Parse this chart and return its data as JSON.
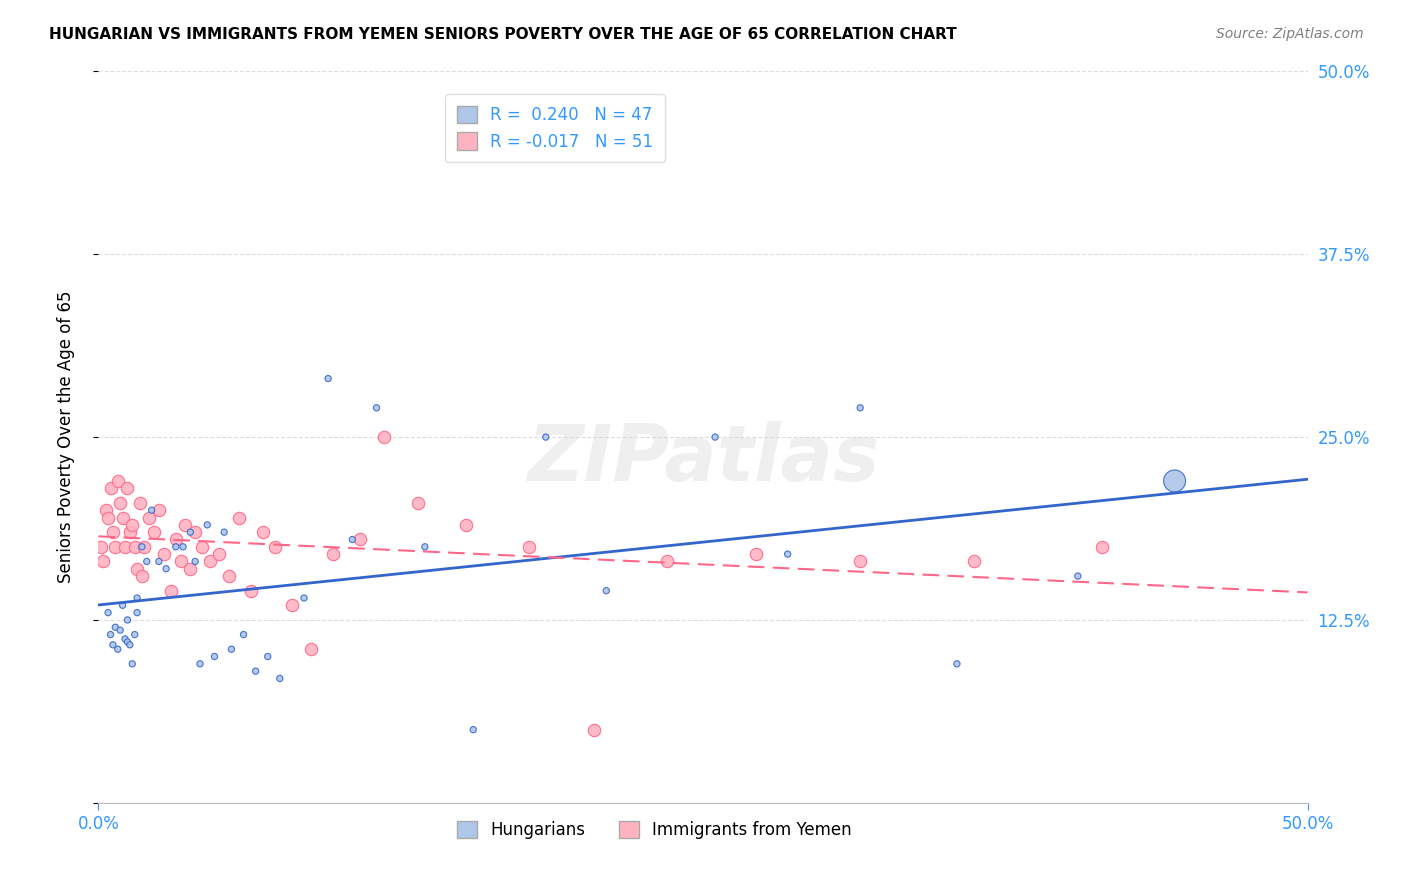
{
  "title": "HUNGARIAN VS IMMIGRANTS FROM YEMEN SENIORS POVERTY OVER THE AGE OF 65 CORRELATION CHART",
  "source": "Source: ZipAtlas.com",
  "ylabel": "Seniors Poverty Over the Age of 65",
  "xlim": [
    0.0,
    0.5
  ],
  "ylim": [
    0.0,
    0.5
  ],
  "blue_color": "#AEC6E8",
  "pink_color": "#FFB3C1",
  "line_blue": "#3366CC",
  "line_pink": "#FF6688",
  "axis_color": "#3399FF",
  "watermark": "ZIPatlas",
  "legend_r1": "R =  0.240   N = 47",
  "legend_r2": "R = -0.017   N = 51",
  "hungarian_x": [
    0.004,
    0.005,
    0.006,
    0.007,
    0.008,
    0.009,
    0.01,
    0.011,
    0.012,
    0.012,
    0.013,
    0.014,
    0.015,
    0.016,
    0.016,
    0.018,
    0.02,
    0.022,
    0.025,
    0.028,
    0.032,
    0.035,
    0.038,
    0.04,
    0.042,
    0.045,
    0.048,
    0.052,
    0.055,
    0.06,
    0.065,
    0.07,
    0.075,
    0.085,
    0.095,
    0.105,
    0.115,
    0.135,
    0.155,
    0.185,
    0.21,
    0.255,
    0.285,
    0.315,
    0.355,
    0.405,
    0.445
  ],
  "hungarian_y": [
    0.13,
    0.115,
    0.108,
    0.12,
    0.105,
    0.118,
    0.135,
    0.112,
    0.11,
    0.125,
    0.108,
    0.095,
    0.115,
    0.14,
    0.13,
    0.175,
    0.165,
    0.2,
    0.165,
    0.16,
    0.175,
    0.175,
    0.185,
    0.165,
    0.095,
    0.19,
    0.1,
    0.185,
    0.105,
    0.115,
    0.09,
    0.1,
    0.085,
    0.14,
    0.29,
    0.18,
    0.27,
    0.175,
    0.05,
    0.25,
    0.145,
    0.25,
    0.17,
    0.27,
    0.095,
    0.155,
    0.22
  ],
  "hungarian_size": [
    20,
    20,
    20,
    20,
    20,
    20,
    20,
    20,
    20,
    20,
    20,
    20,
    20,
    20,
    20,
    20,
    20,
    20,
    20,
    20,
    20,
    20,
    20,
    20,
    20,
    20,
    20,
    20,
    20,
    20,
    20,
    20,
    20,
    20,
    20,
    20,
    20,
    20,
    20,
    20,
    20,
    20,
    20,
    20,
    20,
    20,
    250
  ],
  "yemen_x": [
    0.001,
    0.002,
    0.003,
    0.004,
    0.005,
    0.006,
    0.007,
    0.008,
    0.009,
    0.01,
    0.011,
    0.012,
    0.013,
    0.014,
    0.015,
    0.016,
    0.017,
    0.018,
    0.019,
    0.021,
    0.023,
    0.025,
    0.027,
    0.03,
    0.032,
    0.034,
    0.036,
    0.038,
    0.04,
    0.043,
    0.046,
    0.05,
    0.054,
    0.058,
    0.063,
    0.068,
    0.073,
    0.08,
    0.088,
    0.097,
    0.108,
    0.118,
    0.132,
    0.152,
    0.178,
    0.205,
    0.235,
    0.272,
    0.315,
    0.362,
    0.415
  ],
  "yemen_y": [
    0.175,
    0.165,
    0.2,
    0.195,
    0.215,
    0.185,
    0.175,
    0.22,
    0.205,
    0.195,
    0.175,
    0.215,
    0.185,
    0.19,
    0.175,
    0.16,
    0.205,
    0.155,
    0.175,
    0.195,
    0.185,
    0.2,
    0.17,
    0.145,
    0.18,
    0.165,
    0.19,
    0.16,
    0.185,
    0.175,
    0.165,
    0.17,
    0.155,
    0.195,
    0.145,
    0.185,
    0.175,
    0.135,
    0.105,
    0.17,
    0.18,
    0.25,
    0.205,
    0.19,
    0.175,
    0.05,
    0.165,
    0.17,
    0.165,
    0.165,
    0.175
  ]
}
